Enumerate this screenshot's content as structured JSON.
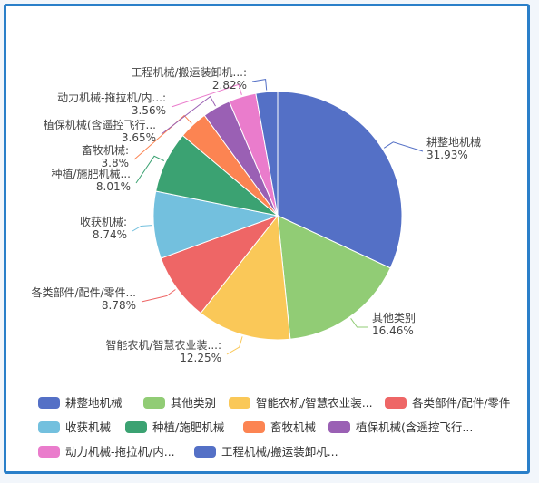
{
  "chart_data": {
    "type": "pie",
    "title": "",
    "legend_position": "bottom",
    "slices": [
      {
        "label": "耕整地机械",
        "label_short": "耕整地机械",
        "legend": "耕整地机械",
        "value": 31.93,
        "percent_text": "31.93%",
        "color": "#5470c6"
      },
      {
        "label": "其他类别",
        "label_short": "其他类别",
        "legend": "其他类别",
        "value": 16.46,
        "percent_text": "16.46%",
        "color": "#91cc75"
      },
      {
        "label": "智能农机/智慧农业装...",
        "label_short": "智能农机/智慧农业装...:",
        "legend": "智能农机/智慧农业装...",
        "value": 12.25,
        "percent_text": "12.25%",
        "color": "#fac858"
      },
      {
        "label": "各类部件/配件/零件",
        "label_short": "各类部件/配件/零件...",
        "legend": "各类部件/配件/零件",
        "value": 8.78,
        "percent_text": "8.78%",
        "color": "#ee6666"
      },
      {
        "label": "收获机械",
        "label_short": "收获机械:",
        "legend": "收获机械",
        "value": 8.74,
        "percent_text": "8.74%",
        "color": "#73c0de"
      },
      {
        "label": "种植/施肥机械",
        "label_short": "种植/施肥机械...",
        "legend": "种植/施肥机械",
        "value": 8.01,
        "percent_text": "8.01%",
        "color": "#3ba272"
      },
      {
        "label": "畜牧机械",
        "label_short": "畜牧机械:",
        "legend": "畜牧机械",
        "value": 3.8,
        "percent_text": "3.8%",
        "color": "#fc8452"
      },
      {
        "label": "植保机械(含遥控飞行...",
        "label_short": "植保机械(含遥控飞行...",
        "legend": "植保机械(含遥控飞行...",
        "value": 3.65,
        "percent_text": "3.65%",
        "color": "#9a60b4"
      },
      {
        "label": "动力机械-拖拉机/内...",
        "label_short": "动力机械-拖拉机/内...:",
        "legend": "动力机械-拖拉机/内...",
        "value": 3.56,
        "percent_text": "3.56%",
        "color": "#ea7ccc"
      },
      {
        "label": "工程机械/搬运装卸机...",
        "label_short": "工程机械/搬运装卸机...:",
        "legend": "工程机械/搬运装卸机...",
        "value": 2.82,
        "percent_text": "2.82%",
        "color": "#5470c6"
      }
    ]
  }
}
